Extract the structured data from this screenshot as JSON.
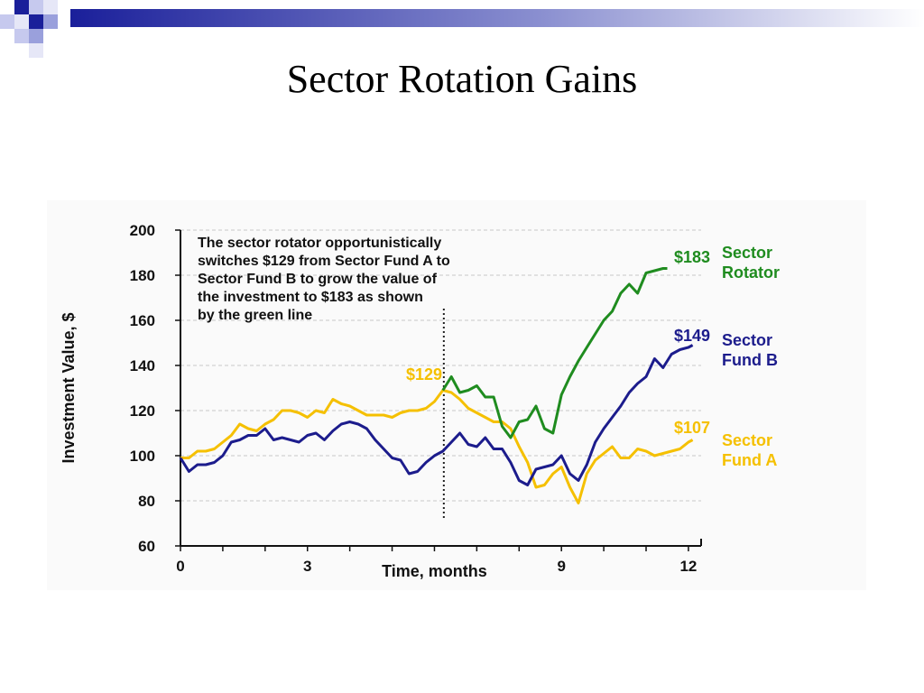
{
  "slide": {
    "title": "Sector Rotation Gains"
  },
  "chart_data": {
    "type": "line",
    "title": "",
    "xlabel": "Time, months",
    "ylabel": "Investment Value, $",
    "xlim": [
      0,
      12.3
    ],
    "ylim": [
      60,
      200
    ],
    "x_ticks": [
      0,
      3,
      9,
      12
    ],
    "y_ticks": [
      60,
      80,
      100,
      120,
      140,
      160,
      180,
      200
    ],
    "grid": "horizontal dashed",
    "annotation": {
      "lines": [
        "The sector rotator opportunistically",
        "switches $129 from Sector Fund A to",
        "Sector Fund B to grow the value of",
        "the investment to $183 as shown",
        "by the green line"
      ],
      "switch_month": 6.2
    },
    "series": [
      {
        "name": "Sector Fund A",
        "legend_lines": [
          "Sector",
          "Fund A"
        ],
        "end_label": "$107",
        "color": "#f5c000",
        "points": [
          [
            0,
            99
          ],
          [
            0.2,
            99
          ],
          [
            0.4,
            102
          ],
          [
            0.6,
            102
          ],
          [
            0.8,
            103
          ],
          [
            1.0,
            106
          ],
          [
            1.2,
            109
          ],
          [
            1.4,
            114
          ],
          [
            1.6,
            112
          ],
          [
            1.8,
            111
          ],
          [
            2.0,
            114
          ],
          [
            2.2,
            116
          ],
          [
            2.4,
            120
          ],
          [
            2.6,
            120
          ],
          [
            2.8,
            119
          ],
          [
            3.0,
            117
          ],
          [
            3.2,
            120
          ],
          [
            3.4,
            119
          ],
          [
            3.6,
            125
          ],
          [
            3.8,
            123
          ],
          [
            4.0,
            122
          ],
          [
            4.2,
            120
          ],
          [
            4.4,
            118
          ],
          [
            4.6,
            118
          ],
          [
            4.8,
            118
          ],
          [
            5.0,
            117
          ],
          [
            5.2,
            119
          ],
          [
            5.4,
            120
          ],
          [
            5.6,
            120
          ],
          [
            5.8,
            121
          ],
          [
            6.0,
            124
          ],
          [
            6.2,
            129
          ],
          [
            6.4,
            128
          ],
          [
            6.6,
            125
          ],
          [
            6.8,
            121
          ],
          [
            7.0,
            119
          ],
          [
            7.2,
            117
          ],
          [
            7.4,
            115
          ],
          [
            7.6,
            115
          ],
          [
            7.8,
            112
          ],
          [
            8.0,
            104
          ],
          [
            8.2,
            97
          ],
          [
            8.4,
            86
          ],
          [
            8.6,
            87
          ],
          [
            8.8,
            92
          ],
          [
            9.0,
            95
          ],
          [
            9.2,
            86
          ],
          [
            9.4,
            79
          ],
          [
            9.6,
            92
          ],
          [
            9.8,
            98
          ],
          [
            10.0,
            101
          ],
          [
            10.2,
            104
          ],
          [
            10.4,
            99
          ],
          [
            10.6,
            99
          ],
          [
            10.8,
            103
          ],
          [
            11.0,
            102
          ],
          [
            11.2,
            100
          ],
          [
            11.4,
            101
          ],
          [
            11.6,
            102
          ],
          [
            11.8,
            103
          ],
          [
            12.0,
            106
          ],
          [
            12.1,
            107
          ]
        ]
      },
      {
        "name": "Sector Fund B",
        "legend_lines": [
          "Sector",
          "Fund B"
        ],
        "end_label": "$149",
        "color": "#1c1c8c",
        "points": [
          [
            0,
            99
          ],
          [
            0.2,
            93
          ],
          [
            0.4,
            96
          ],
          [
            0.6,
            96
          ],
          [
            0.8,
            97
          ],
          [
            1.0,
            100
          ],
          [
            1.2,
            106
          ],
          [
            1.4,
            107
          ],
          [
            1.6,
            109
          ],
          [
            1.8,
            109
          ],
          [
            2.0,
            112
          ],
          [
            2.2,
            107
          ],
          [
            2.4,
            108
          ],
          [
            2.6,
            107
          ],
          [
            2.8,
            106
          ],
          [
            3.0,
            109
          ],
          [
            3.2,
            110
          ],
          [
            3.4,
            107
          ],
          [
            3.6,
            111
          ],
          [
            3.8,
            114
          ],
          [
            4.0,
            115
          ],
          [
            4.2,
            114
          ],
          [
            4.4,
            112
          ],
          [
            4.6,
            107
          ],
          [
            4.8,
            103
          ],
          [
            5.0,
            99
          ],
          [
            5.2,
            98
          ],
          [
            5.4,
            92
          ],
          [
            5.6,
            93
          ],
          [
            5.8,
            97
          ],
          [
            6.0,
            100
          ],
          [
            6.2,
            102
          ],
          [
            6.4,
            106
          ],
          [
            6.6,
            110
          ],
          [
            6.8,
            105
          ],
          [
            7.0,
            104
          ],
          [
            7.2,
            108
          ],
          [
            7.4,
            103
          ],
          [
            7.6,
            103
          ],
          [
            7.8,
            97
          ],
          [
            8.0,
            89
          ],
          [
            8.2,
            87
          ],
          [
            8.4,
            94
          ],
          [
            8.6,
            95
          ],
          [
            8.8,
            96
          ],
          [
            9.0,
            100
          ],
          [
            9.2,
            92
          ],
          [
            9.4,
            89
          ],
          [
            9.6,
            96
          ],
          [
            9.8,
            106
          ],
          [
            10.0,
            112
          ],
          [
            10.2,
            117
          ],
          [
            10.4,
            122
          ],
          [
            10.6,
            128
          ],
          [
            10.8,
            132
          ],
          [
            11.0,
            135
          ],
          [
            11.2,
            143
          ],
          [
            11.4,
            139
          ],
          [
            11.6,
            145
          ],
          [
            11.8,
            147
          ],
          [
            12.0,
            148
          ],
          [
            12.1,
            149
          ]
        ]
      },
      {
        "name": "Sector Rotator",
        "legend_lines": [
          "Sector",
          "Rotator"
        ],
        "end_label": "$183",
        "switch_label": "$129",
        "color": "#1f8c1f",
        "points": [
          [
            6.2,
            129
          ],
          [
            6.4,
            135
          ],
          [
            6.6,
            128
          ],
          [
            6.8,
            129
          ],
          [
            7.0,
            131
          ],
          [
            7.2,
            126
          ],
          [
            7.4,
            126
          ],
          [
            7.6,
            113
          ],
          [
            7.8,
            108
          ],
          [
            8.0,
            115
          ],
          [
            8.2,
            116
          ],
          [
            8.4,
            122
          ],
          [
            8.6,
            112
          ],
          [
            8.8,
            110
          ],
          [
            9.0,
            127
          ],
          [
            9.2,
            135
          ],
          [
            9.4,
            142
          ],
          [
            9.6,
            148
          ],
          [
            9.8,
            154
          ],
          [
            10.0,
            160
          ],
          [
            10.2,
            164
          ],
          [
            10.4,
            172
          ],
          [
            10.6,
            176
          ],
          [
            10.8,
            172
          ],
          [
            11.0,
            181
          ],
          [
            11.2,
            182
          ],
          [
            11.4,
            183
          ],
          [
            11.5,
            183
          ]
        ]
      }
    ]
  }
}
